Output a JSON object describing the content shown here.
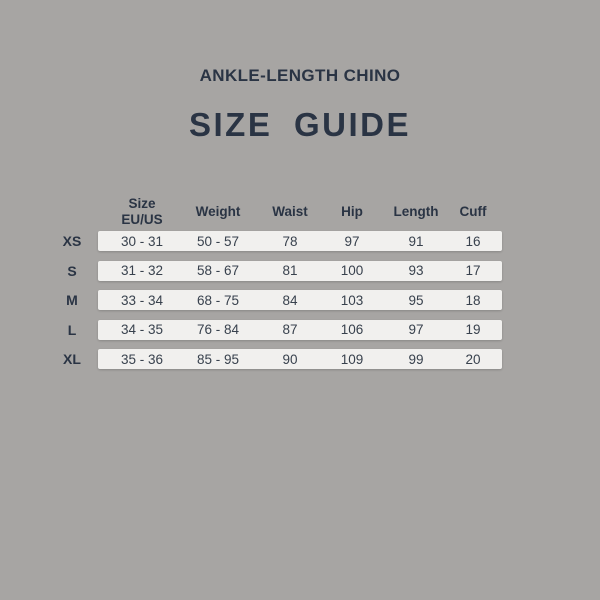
{
  "colors": {
    "background": "#a7a5a3",
    "heading": "#2a3444",
    "row_bg": "#f1f0ee",
    "cell_text": "#38414d"
  },
  "header": {
    "subtitle": "ANKLE-LENGTH CHINO",
    "title": "SIZE GUIDE"
  },
  "table": {
    "columns": [
      {
        "label": "Size",
        "sublabel": "EU/US"
      },
      {
        "label": "Weight"
      },
      {
        "label": "Waist"
      },
      {
        "label": "Hip"
      },
      {
        "label": "Length"
      },
      {
        "label": "Cuff"
      }
    ],
    "rows": [
      {
        "size": "XS",
        "values": [
          "30 - 31",
          "50 - 57",
          "78",
          "97",
          "91",
          "16"
        ]
      },
      {
        "size": "S",
        "values": [
          "31 - 32",
          "58 - 67",
          "81",
          "100",
          "93",
          "17"
        ]
      },
      {
        "size": "M",
        "values": [
          "33 - 34",
          "68 - 75",
          "84",
          "103",
          "95",
          "18"
        ]
      },
      {
        "size": "L",
        "values": [
          "34 - 35",
          "76 - 84",
          "87",
          "106",
          "97",
          "19"
        ]
      },
      {
        "size": "XL",
        "values": [
          "35 - 36",
          "85 - 95",
          "90",
          "109",
          "99",
          "20"
        ]
      }
    ]
  }
}
